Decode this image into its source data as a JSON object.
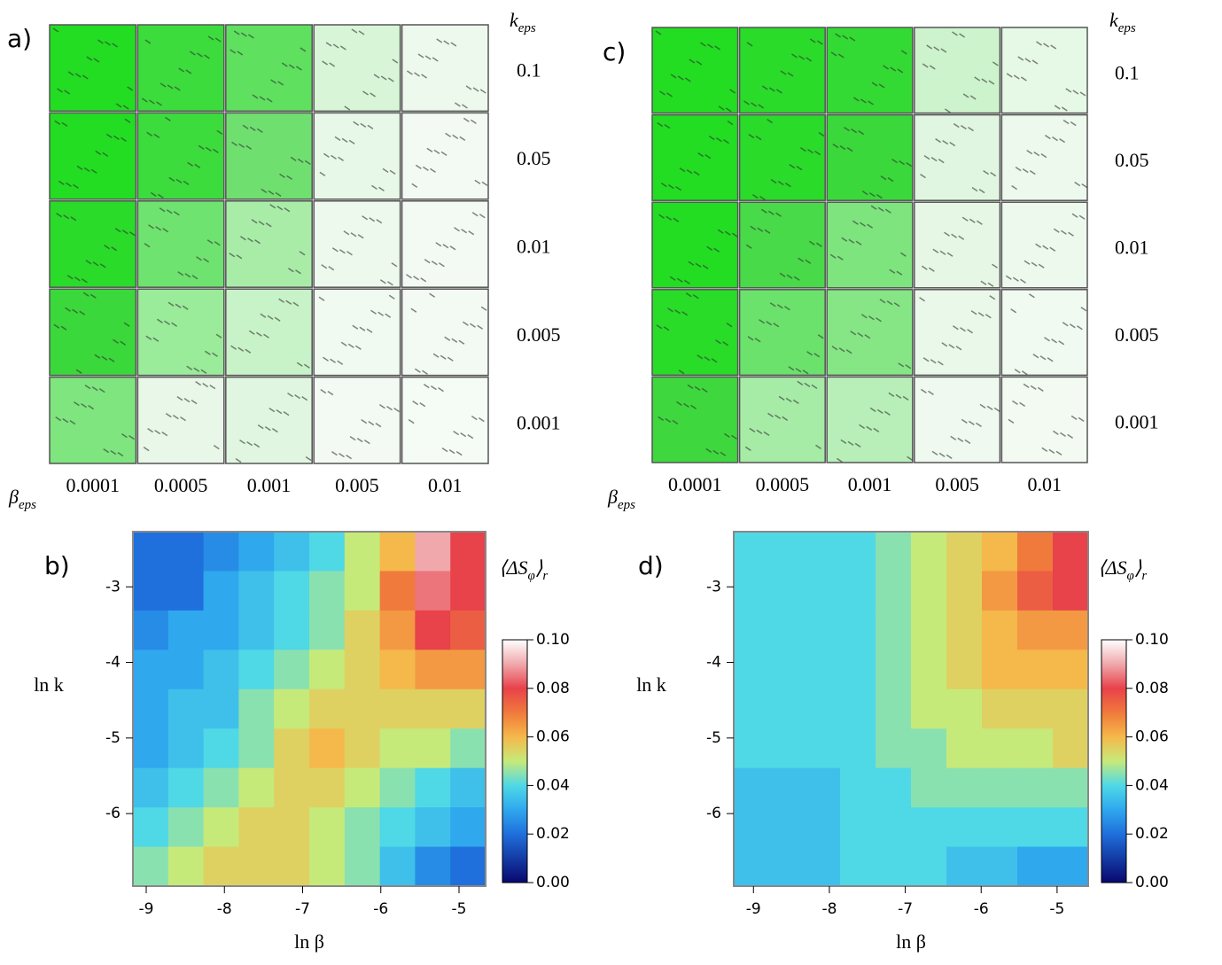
{
  "chart_data": [
    {
      "type": "image-grid",
      "label": "a)",
      "row_axis_label": [
        "k",
        "eps"
      ],
      "col_axis_label": [
        "β",
        "eps"
      ],
      "row_labels": [
        "0.1",
        "0.05",
        "0.01",
        "0.005",
        "0.001"
      ],
      "col_labels": [
        "0.0001",
        "0.0005",
        "0.001",
        "0.005",
        "0.01"
      ],
      "tile_colors": [
        [
          "#22dd22",
          "#3cdc3c",
          "#5fe05f",
          "#d8f5d8",
          "#eef9ee"
        ],
        [
          "#22dd22",
          "#3cdc3c",
          "#6fe06f",
          "#e8f8e8",
          "#f3faf3"
        ],
        [
          "#2adb2a",
          "#6fe36f",
          "#a8eca8",
          "#eef9ee",
          "#f3faf3"
        ],
        [
          "#3ad83a",
          "#9aeb9a",
          "#c8f2c8",
          "#f0faf0",
          "#f3faf3"
        ],
        [
          "#7fe57f",
          "#e8f7e8",
          "#e0f6e0",
          "#f3faf3",
          "#f5fbf5"
        ]
      ]
    },
    {
      "type": "contour",
      "label": "b)",
      "x_label": "ln β",
      "y_label": "ln k",
      "colorbar_title": [
        "⟨ΔS",
        "φ",
        "⟩",
        "r"
      ],
      "xlim": [
        -9.17,
        -4.66
      ],
      "ylim": [
        -6.96,
        -2.27
      ],
      "xticks": [
        -9,
        -8,
        -7,
        -6,
        -5
      ],
      "yticks": [
        -3,
        -4,
        -5,
        -6
      ],
      "zlim": [
        0,
        0.1
      ],
      "zticks": [
        {
          "value": 0,
          "label": "0.00"
        },
        0.02,
        0.04,
        0.06,
        0.08,
        {
          "value": 0.1,
          "label": "0.10"
        }
      ],
      "colormap": [
        {
          "value": 0,
          "color": "#08086e"
        },
        {
          "value": 0.02,
          "color": "#1f6fdc"
        },
        {
          "value": 0.03,
          "color": "#2fa8ee"
        },
        {
          "value": 0.04,
          "color": "#4fd8e6"
        },
        {
          "value": 0.05,
          "color": "#c6ea7a"
        },
        {
          "value": 0.06,
          "color": "#f5b84a"
        },
        {
          "value": 0.07,
          "color": "#f07a3c"
        },
        {
          "value": 0.08,
          "color": "#e8424a"
        },
        {
          "value": 0.09,
          "color": "#f0a8ac"
        },
        {
          "value": 0.1,
          "color": "#ffffff"
        }
      ],
      "z": [
        [
          0.02,
          0.02,
          0.025,
          0.03,
          0.035,
          0.04,
          0.05,
          0.06,
          0.09,
          0.08
        ],
        [
          0.02,
          0.02,
          0.03,
          0.035,
          0.04,
          0.045,
          0.05,
          0.07,
          0.085,
          0.08
        ],
        [
          0.025,
          0.03,
          0.03,
          0.035,
          0.04,
          0.045,
          0.055,
          0.065,
          0.08,
          0.075
        ],
        [
          0.03,
          0.03,
          0.035,
          0.04,
          0.045,
          0.05,
          0.055,
          0.06,
          0.065,
          0.065
        ],
        [
          0.03,
          0.035,
          0.035,
          0.045,
          0.05,
          0.055,
          0.055,
          0.055,
          0.055,
          0.055
        ],
        [
          0.03,
          0.035,
          0.04,
          0.045,
          0.055,
          0.06,
          0.055,
          0.05,
          0.05,
          0.045
        ],
        [
          0.035,
          0.04,
          0.045,
          0.05,
          0.055,
          0.055,
          0.05,
          0.045,
          0.04,
          0.035
        ],
        [
          0.04,
          0.045,
          0.05,
          0.055,
          0.055,
          0.05,
          0.045,
          0.04,
          0.035,
          0.03
        ],
        [
          0.045,
          0.05,
          0.055,
          0.055,
          0.055,
          0.05,
          0.045,
          0.035,
          0.025,
          0.02
        ]
      ]
    },
    {
      "type": "image-grid",
      "label": "c)",
      "row_axis_label": [
        "k",
        "eps"
      ],
      "col_axis_label": [
        "β",
        "eps"
      ],
      "row_labels": [
        "0.1",
        "0.05",
        "0.01",
        "0.005",
        "0.001"
      ],
      "col_labels": [
        "0.0001",
        "0.0005",
        "0.001",
        "0.005",
        "0.01"
      ],
      "tile_colors": [
        [
          "#22dd22",
          "#2adb2a",
          "#33da33",
          "#cdf3cd",
          "#e6f8e6"
        ],
        [
          "#22dd22",
          "#2adb2a",
          "#3ad83a",
          "#e0f6e0",
          "#eef9ee"
        ],
        [
          "#22dd22",
          "#48da48",
          "#7ee47e",
          "#e6f7e6",
          "#eef9ee"
        ],
        [
          "#28dc28",
          "#6be26b",
          "#86e686",
          "#eaf8ea",
          "#f0faf0"
        ],
        [
          "#3ed83e",
          "#a6eba6",
          "#b8efb8",
          "#eff9ef",
          "#f2faf2"
        ]
      ]
    },
    {
      "type": "contour",
      "label": "d)",
      "x_label": "ln β",
      "y_label": "ln k",
      "colorbar_title": [
        "⟨ΔS",
        "φ",
        "⟩",
        "r"
      ],
      "xlim": [
        -9.26,
        -4.59
      ],
      "ylim": [
        -6.96,
        -2.27
      ],
      "xticks": [
        -9,
        -8,
        -7,
        -6,
        -5
      ],
      "yticks": [
        -3,
        -4,
        -5,
        -6
      ],
      "zlim": [
        0,
        0.1
      ],
      "zticks": [
        {
          "value": 0,
          "label": "0.00"
        },
        0.02,
        0.04,
        0.06,
        0.08,
        {
          "value": 0.1,
          "label": "0.10"
        }
      ],
      "colormap": [
        {
          "value": 0,
          "color": "#08086e"
        },
        {
          "value": 0.02,
          "color": "#1f6fdc"
        },
        {
          "value": 0.03,
          "color": "#2fa8ee"
        },
        {
          "value": 0.04,
          "color": "#4fd8e6"
        },
        {
          "value": 0.05,
          "color": "#c6ea7a"
        },
        {
          "value": 0.06,
          "color": "#f5b84a"
        },
        {
          "value": 0.07,
          "color": "#f07a3c"
        },
        {
          "value": 0.08,
          "color": "#e8424a"
        },
        {
          "value": 0.09,
          "color": "#f0a8ac"
        },
        {
          "value": 0.1,
          "color": "#ffffff"
        }
      ],
      "z": [
        [
          0.04,
          0.04,
          0.04,
          0.04,
          0.045,
          0.05,
          0.055,
          0.06,
          0.07,
          0.08
        ],
        [
          0.04,
          0.04,
          0.04,
          0.04,
          0.045,
          0.05,
          0.055,
          0.065,
          0.075,
          0.08
        ],
        [
          0.04,
          0.04,
          0.04,
          0.04,
          0.045,
          0.05,
          0.055,
          0.06,
          0.065,
          0.065
        ],
        [
          0.04,
          0.04,
          0.04,
          0.04,
          0.045,
          0.05,
          0.055,
          0.06,
          0.06,
          0.06
        ],
        [
          0.04,
          0.04,
          0.04,
          0.04,
          0.045,
          0.05,
          0.05,
          0.055,
          0.055,
          0.055
        ],
        [
          0.04,
          0.04,
          0.04,
          0.04,
          0.045,
          0.045,
          0.05,
          0.05,
          0.05,
          0.055
        ],
        [
          0.035,
          0.035,
          0.035,
          0.04,
          0.04,
          0.045,
          0.045,
          0.045,
          0.045,
          0.045
        ],
        [
          0.035,
          0.035,
          0.035,
          0.04,
          0.04,
          0.04,
          0.04,
          0.04,
          0.04,
          0.04
        ],
        [
          0.035,
          0.035,
          0.035,
          0.04,
          0.04,
          0.04,
          0.035,
          0.035,
          0.03,
          0.03
        ]
      ]
    }
  ]
}
